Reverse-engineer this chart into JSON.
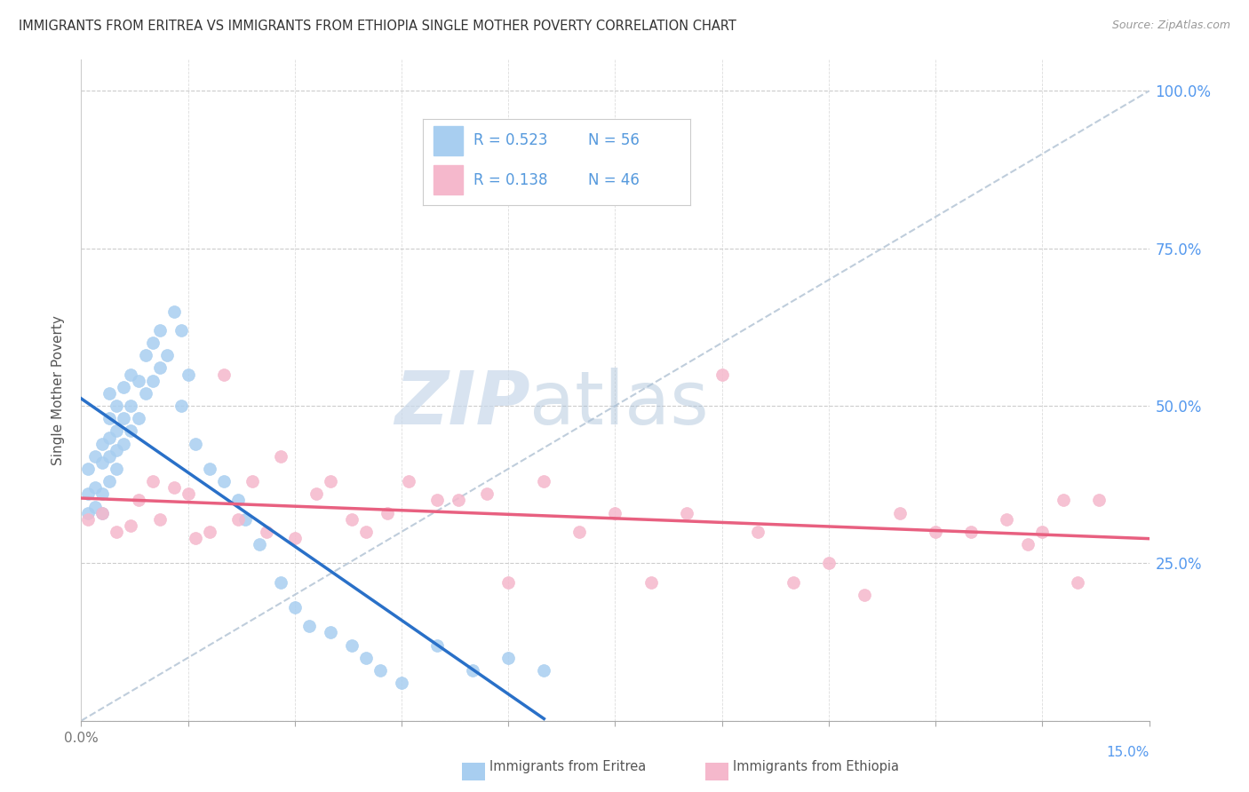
{
  "title": "IMMIGRANTS FROM ERITREA VS IMMIGRANTS FROM ETHIOPIA SINGLE MOTHER POVERTY CORRELATION CHART",
  "source": "Source: ZipAtlas.com",
  "ylabel": "Single Mother Poverty",
  "watermark_zip": "ZIP",
  "watermark_atlas": "atlas",
  "color_eritrea": "#a8cef0",
  "color_ethiopia": "#f5b8cc",
  "color_eritrea_line": "#2970c8",
  "color_ethiopia_line": "#e86080",
  "color_ref_line": "#b8c8d8",
  "R_eritrea": "0.523",
  "N_eritrea": "56",
  "R_ethiopia": "0.138",
  "N_ethiopia": "46",
  "xmin": 0.0,
  "xmax": 0.15,
  "ymin": 0.0,
  "ymax": 1.05,
  "eritrea_x": [
    0.001,
    0.001,
    0.001,
    0.002,
    0.002,
    0.002,
    0.003,
    0.003,
    0.003,
    0.003,
    0.004,
    0.004,
    0.004,
    0.004,
    0.004,
    0.005,
    0.005,
    0.005,
    0.005,
    0.006,
    0.006,
    0.006,
    0.007,
    0.007,
    0.007,
    0.008,
    0.008,
    0.009,
    0.009,
    0.01,
    0.01,
    0.011,
    0.011,
    0.012,
    0.013,
    0.014,
    0.014,
    0.015,
    0.016,
    0.018,
    0.02,
    0.022,
    0.023,
    0.025,
    0.028,
    0.03,
    0.032,
    0.035,
    0.038,
    0.04,
    0.042,
    0.045,
    0.05,
    0.055,
    0.06,
    0.065
  ],
  "eritrea_y": [
    0.33,
    0.36,
    0.4,
    0.34,
    0.37,
    0.42,
    0.33,
    0.36,
    0.41,
    0.44,
    0.38,
    0.42,
    0.45,
    0.48,
    0.52,
    0.4,
    0.43,
    0.46,
    0.5,
    0.44,
    0.48,
    0.53,
    0.46,
    0.5,
    0.55,
    0.48,
    0.54,
    0.52,
    0.58,
    0.54,
    0.6,
    0.56,
    0.62,
    0.58,
    0.65,
    0.62,
    0.5,
    0.55,
    0.44,
    0.4,
    0.38,
    0.35,
    0.32,
    0.28,
    0.22,
    0.18,
    0.15,
    0.14,
    0.12,
    0.1,
    0.08,
    0.06,
    0.12,
    0.08,
    0.1,
    0.08
  ],
  "ethiopia_x": [
    0.001,
    0.003,
    0.005,
    0.007,
    0.008,
    0.01,
    0.011,
    0.013,
    0.015,
    0.016,
    0.018,
    0.02,
    0.022,
    0.024,
    0.026,
    0.028,
    0.03,
    0.033,
    0.035,
    0.038,
    0.04,
    0.043,
    0.046,
    0.05,
    0.053,
    0.057,
    0.06,
    0.065,
    0.07,
    0.075,
    0.08,
    0.085,
    0.09,
    0.095,
    0.1,
    0.105,
    0.11,
    0.115,
    0.12,
    0.125,
    0.13,
    0.133,
    0.135,
    0.138,
    0.14,
    0.143
  ],
  "ethiopia_y": [
    0.32,
    0.33,
    0.3,
    0.31,
    0.35,
    0.38,
    0.32,
    0.37,
    0.36,
    0.29,
    0.3,
    0.55,
    0.32,
    0.38,
    0.3,
    0.42,
    0.29,
    0.36,
    0.38,
    0.32,
    0.3,
    0.33,
    0.38,
    0.35,
    0.35,
    0.36,
    0.22,
    0.38,
    0.3,
    0.33,
    0.22,
    0.33,
    0.55,
    0.3,
    0.22,
    0.25,
    0.2,
    0.33,
    0.3,
    0.3,
    0.32,
    0.28,
    0.3,
    0.35,
    0.22,
    0.35
  ]
}
